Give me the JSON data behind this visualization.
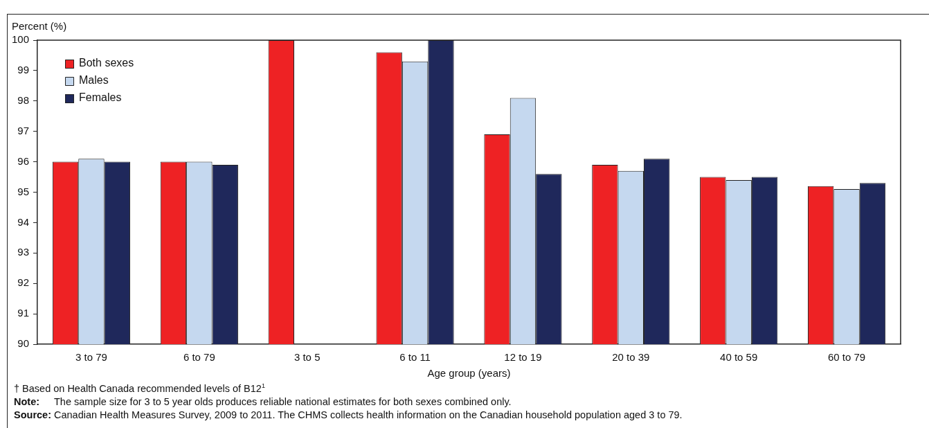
{
  "chart_data": {
    "type": "bar",
    "ylabel": "Percent (%)",
    "xlabel": "Age group (years)",
    "categories": [
      "3 to 79",
      "6 to 79",
      "3 to 5",
      "6 to 11",
      "12 to 19",
      "20 to 39",
      "40 to 59",
      "60 to 79"
    ],
    "series": [
      {
        "name": "Both sexes",
        "color": "#ee2224",
        "values": [
          96.0,
          96.0,
          100,
          99.6,
          96.9,
          95.9,
          95.5,
          95.2
        ]
      },
      {
        "name": "Males",
        "color": "#c5d8ef",
        "values": [
          96.1,
          96.0,
          null,
          99.3,
          98.1,
          95.7,
          95.4,
          95.1
        ]
      },
      {
        "name": "Females",
        "color": "#1f285b",
        "values": [
          96.0,
          95.9,
          null,
          100,
          95.6,
          96.1,
          95.5,
          95.3
        ]
      }
    ],
    "ylim": [
      90,
      100
    ],
    "yticks": [
      90,
      91,
      92,
      93,
      94,
      95,
      96,
      97,
      98,
      99,
      100
    ],
    "grid": false,
    "legend": "top left",
    "annotations": [
      "† Based on Health Canada recommended levels of B12$^{1}$",
      "Note: The sample size for 3 to 5 year olds produces reliable national estimates for both sexes combined only.",
      "Source: Canadian Health Measures Survey, 2009 to 2011. The CHMS collects health information on the Canadian household population aged 3 to 79."
    ]
  }
}
